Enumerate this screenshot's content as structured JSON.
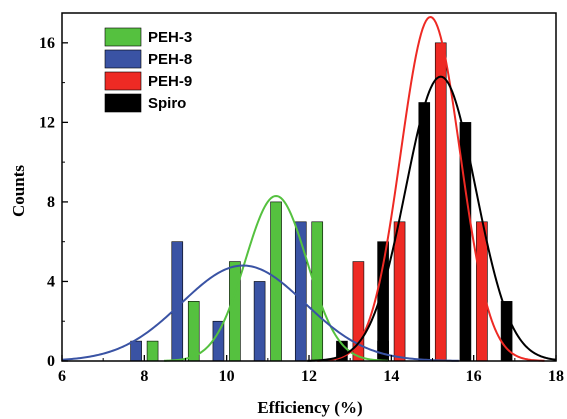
{
  "chart_data": {
    "type": "bar",
    "xlabel": "Efficiency (%)",
    "ylabel": "Counts",
    "xlim": [
      6,
      18
    ],
    "ylim": [
      0,
      17.5
    ],
    "xticks": [
      6,
      8,
      10,
      12,
      14,
      16,
      18
    ],
    "yticks": [
      0,
      4,
      8,
      12,
      16
    ],
    "legend_position": "top-left",
    "series": [
      {
        "name": "PEH-3",
        "color": "#55c13f",
        "bars": [
          {
            "x": 8.2,
            "value": 1
          },
          {
            "x": 9.2,
            "value": 3
          },
          {
            "x": 10.2,
            "value": 5
          },
          {
            "x": 11.2,
            "value": 8
          },
          {
            "x": 12.2,
            "value": 7
          }
        ],
        "fit": {
          "mean": 11.2,
          "sigma": 0.75,
          "peak": 8.3
        }
      },
      {
        "name": "PEH-8",
        "color": "#3a53a4",
        "bars": [
          {
            "x": 7.8,
            "value": 1
          },
          {
            "x": 8.8,
            "value": 6
          },
          {
            "x": 9.8,
            "value": 2
          },
          {
            "x": 10.8,
            "value": 4
          },
          {
            "x": 11.8,
            "value": 7
          }
        ],
        "fit": {
          "mean": 10.4,
          "sigma": 1.5,
          "peak": 4.8
        }
      },
      {
        "name": "PEH-9",
        "color": "#ee2a24",
        "bars": [
          {
            "x": 13.2,
            "value": 5
          },
          {
            "x": 13.8,
            "value": 1
          },
          {
            "x": 14.2,
            "value": 7
          },
          {
            "x": 15.2,
            "value": 16
          },
          {
            "x": 16.2,
            "value": 7
          }
        ],
        "fit": {
          "mean": 14.95,
          "sigma": 0.72,
          "peak": 17.3
        }
      },
      {
        "name": "Spiro",
        "color": "#000000",
        "bars": [
          {
            "x": 12.8,
            "value": 1
          },
          {
            "x": 13.8,
            "value": 6
          },
          {
            "x": 14.8,
            "value": 13
          },
          {
            "x": 15.8,
            "value": 12
          },
          {
            "x": 16.8,
            "value": 3
          }
        ],
        "fit": {
          "mean": 15.2,
          "sigma": 0.85,
          "peak": 14.3
        }
      }
    ]
  }
}
